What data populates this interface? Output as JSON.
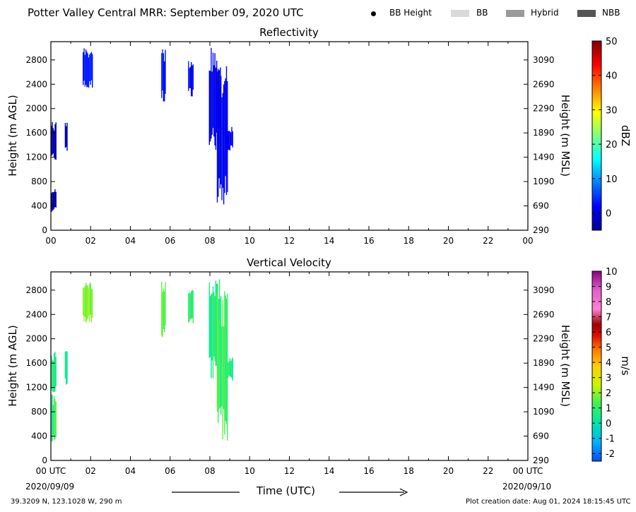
{
  "header": {
    "title": "Potter Valley Central MRR:  September 09, 2020 UTC",
    "legend": [
      {
        "label": "BB Height",
        "marker": "dot",
        "color": "#000000"
      },
      {
        "label": "BB",
        "marker": "swatch",
        "color": "#d9d9d9"
      },
      {
        "label": "Hybrid",
        "marker": "swatch",
        "color": "#9a9a9a"
      },
      {
        "label": "NBB",
        "marker": "swatch",
        "color": "#555555"
      }
    ]
  },
  "footer": {
    "date_start": "2020/09/09",
    "date_end": "2020/09/10",
    "location": "39.3209 N, 123.1028 W, 290 m",
    "creation": "Plot creation date: Aug 01, 2024 18:15:45 UTC",
    "xlabel": "Time (UTC)"
  },
  "chart_data": [
    {
      "type": "heatmap",
      "title": "Reflectivity",
      "xlabel": "",
      "ylabel": "Height (m AGL)",
      "ylabel_right": "Height (m MSL)",
      "xlim": [
        0,
        24
      ],
      "ylim": [
        0,
        3100
      ],
      "x_ticks": [
        "00",
        "02",
        "04",
        "06",
        "08",
        "10",
        "12",
        "14",
        "16",
        "18",
        "20",
        "22",
        "00"
      ],
      "y_ticks": [
        0,
        400,
        800,
        1200,
        1600,
        2000,
        2400,
        2800
      ],
      "y_ticks_right": [
        290,
        690,
        1090,
        1490,
        1890,
        2290,
        2690,
        3090
      ],
      "colorbar": {
        "label": "dBZ",
        "min": -5,
        "max": 50,
        "ticks": [
          0,
          10,
          20,
          30,
          40,
          50
        ],
        "scale": "jet"
      },
      "echoes": [
        {
          "t0": 0.0,
          "t1": 0.25,
          "h0": 300,
          "h1": 700,
          "value": -4
        },
        {
          "t0": 0.0,
          "t1": 0.25,
          "h0": 1100,
          "h1": 1800,
          "value": -4
        },
        {
          "t0": 0.7,
          "t1": 0.8,
          "h0": 1300,
          "h1": 1800,
          "value": -4
        },
        {
          "t0": 1.6,
          "t1": 2.1,
          "h0": 2300,
          "h1": 3000,
          "value": 3
        },
        {
          "t0": 5.55,
          "t1": 5.75,
          "h0": 2100,
          "h1": 3000,
          "value": 3
        },
        {
          "t0": 6.9,
          "t1": 7.15,
          "h0": 2200,
          "h1": 2800,
          "value": 2
        },
        {
          "t0": 7.95,
          "t1": 8.55,
          "h0": 1300,
          "h1": 3000,
          "value": 1
        },
        {
          "t0": 8.35,
          "t1": 8.9,
          "h0": 300,
          "h1": 2800,
          "value": 1
        },
        {
          "t0": 8.8,
          "t1": 9.15,
          "h0": 1300,
          "h1": 1700,
          "value": 1
        }
      ]
    },
    {
      "type": "heatmap",
      "title": "Vertical Velocity",
      "xlabel": "Time (UTC)",
      "ylabel": "Height (m AGL)",
      "ylabel_right": "Height (m MSL)",
      "xlim": [
        0,
        24
      ],
      "ylim": [
        0,
        3100
      ],
      "x_ticks": [
        "00 UTC",
        "02",
        "04",
        "06",
        "08",
        "10",
        "12",
        "14",
        "16",
        "18",
        "20",
        "22",
        "00 UTC"
      ],
      "y_ticks": [
        0,
        400,
        800,
        1200,
        1600,
        2000,
        2400,
        2800
      ],
      "y_ticks_right": [
        290,
        690,
        1090,
        1490,
        1890,
        2290,
        2690,
        3090
      ],
      "colorbar": {
        "label": "m/s",
        "min": -2.5,
        "max": 10,
        "ticks": [
          -2,
          -1,
          0,
          1,
          2,
          3,
          4,
          5,
          6,
          7,
          8,
          9,
          10
        ],
        "scale": "velocity"
      },
      "echoes": [
        {
          "t0": 0.0,
          "t1": 0.25,
          "h0": 300,
          "h1": 1100,
          "value": 1.0
        },
        {
          "t0": 0.0,
          "t1": 0.25,
          "h0": 1100,
          "h1": 1800,
          "value": 0.6
        },
        {
          "t0": 0.7,
          "t1": 0.8,
          "h0": 1200,
          "h1": 1800,
          "value": 0.6
        },
        {
          "t0": 1.6,
          "t1": 2.1,
          "h0": 2200,
          "h1": 3000,
          "value": 1.6
        },
        {
          "t0": 5.55,
          "t1": 5.75,
          "h0": 2000,
          "h1": 3000,
          "value": 1.3
        },
        {
          "t0": 6.9,
          "t1": 7.15,
          "h0": 2200,
          "h1": 2800,
          "value": 0.9
        },
        {
          "t0": 7.95,
          "t1": 8.55,
          "h0": 1300,
          "h1": 3000,
          "value": 0.7
        },
        {
          "t0": 8.35,
          "t1": 8.9,
          "h0": 300,
          "h1": 2800,
          "value": 1.2
        },
        {
          "t0": 8.8,
          "t1": 9.15,
          "h0": 1300,
          "h1": 1700,
          "value": 0.8
        }
      ]
    }
  ]
}
